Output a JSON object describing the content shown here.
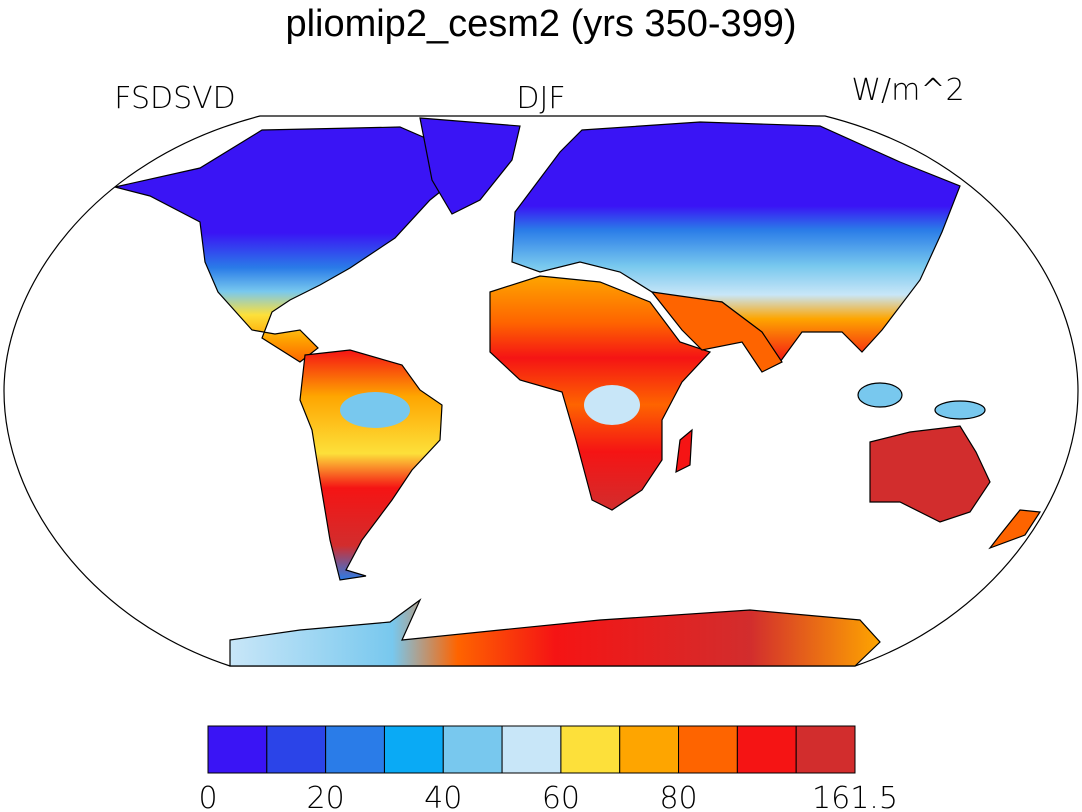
{
  "title": "pliomip2_cesm2 (yrs 350-399)",
  "left_label": "FSDSVD",
  "center_label": "DJF",
  "right_label": "W/m^2",
  "colorbar": {
    "colors": [
      "#3a14f5",
      "#2b44e8",
      "#2a7ce8",
      "#0aaaf5",
      "#78c8ee",
      "#c8e6f8",
      "#fde03a",
      "#fea500",
      "#fe6400",
      "#f51414",
      "#d22d2d"
    ],
    "labels": [
      0,
      20,
      40,
      60,
      80,
      161.5
    ]
  }
}
